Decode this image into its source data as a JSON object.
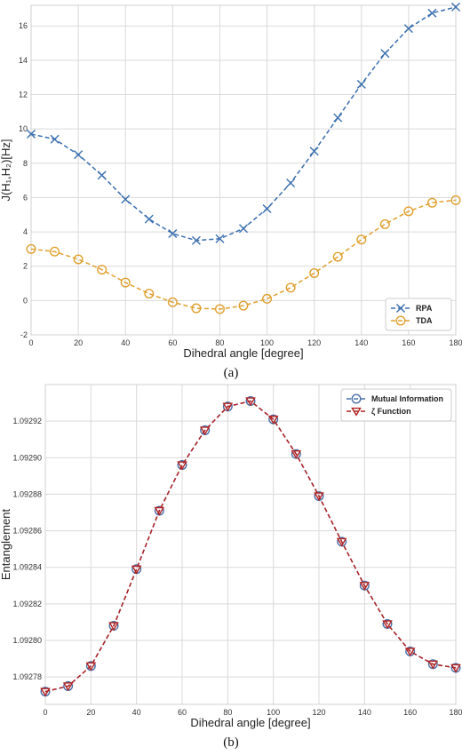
{
  "charts": [
    {
      "id": "a",
      "caption": "(a)",
      "chart_data": {
        "type": "line",
        "xlabel": "Dihedral angle [degree]",
        "ylabel": "J(H₁,H₂)[Hz]",
        "xlim": [
          0,
          180
        ],
        "ylim": [
          -2,
          17.2
        ],
        "xticks": [
          0,
          20,
          40,
          60,
          80,
          100,
          120,
          140,
          160,
          180
        ],
        "yticks": [
          -2,
          0,
          2,
          4,
          6,
          8,
          10,
          12,
          14,
          16
        ],
        "grid": true,
        "legend_position": "bottom-right",
        "x": [
          0,
          10,
          20,
          30,
          40,
          50,
          60,
          70,
          80,
          90,
          100,
          110,
          120,
          130,
          140,
          150,
          160,
          170,
          180
        ],
        "series": [
          {
            "name": "RPA",
            "color": "#3a6fb0",
            "marker": "x",
            "values": [
              9.7,
              9.4,
              8.5,
              7.3,
              5.9,
              4.75,
              3.9,
              3.5,
              3.6,
              4.2,
              5.35,
              6.85,
              8.7,
              10.65,
              12.6,
              14.4,
              15.85,
              16.75,
              17.1
            ]
          },
          {
            "name": "TDA",
            "color": "#e0a030",
            "marker": "o",
            "values": [
              3.0,
              2.85,
              2.4,
              1.8,
              1.05,
              0.4,
              -0.1,
              -0.45,
              -0.5,
              -0.3,
              0.1,
              0.75,
              1.6,
              2.55,
              3.55,
              4.45,
              5.2,
              5.7,
              5.85
            ]
          }
        ]
      }
    },
    {
      "id": "b",
      "caption": "(b)",
      "chart_data": {
        "type": "line",
        "xlabel": "Dihedral angle [degree]",
        "ylabel": "Entanglement",
        "xlim": [
          0,
          180
        ],
        "ylim": [
          1.092765,
          1.09294
        ],
        "xticks": [
          0,
          20,
          40,
          60,
          80,
          100,
          120,
          140,
          160,
          180
        ],
        "yticks": [
          1.09278,
          1.0928,
          1.09282,
          1.09284,
          1.09286,
          1.09288,
          1.0929,
          1.09292
        ],
        "ytick_labels": [
          "1.09278",
          "1.09280",
          "1.09282",
          "1.09284",
          "1.09286",
          "1.09288",
          "1.09290",
          "1.09292"
        ],
        "grid": true,
        "legend_position": "top-right",
        "x": [
          0,
          10,
          20,
          30,
          40,
          50,
          60,
          70,
          80,
          90,
          100,
          110,
          120,
          130,
          140,
          150,
          160,
          170,
          180
        ],
        "series": [
          {
            "name": "Mutual Information",
            "color": "#4a6fa8",
            "marker": "o",
            "values": [
              1.092772,
              1.092775,
              1.092786,
              1.092808,
              1.092839,
              1.092871,
              1.092896,
              1.092915,
              1.092928,
              1.092931,
              1.092921,
              1.092902,
              1.092879,
              1.092854,
              1.09283,
              1.092809,
              1.092794,
              1.092787,
              1.092785
            ]
          },
          {
            "name": "ζ Function",
            "color": "#b22222",
            "marker": "v",
            "values": [
              1.092772,
              1.092775,
              1.092786,
              1.092808,
              1.092839,
              1.092871,
              1.092896,
              1.092915,
              1.092928,
              1.092931,
              1.092921,
              1.092902,
              1.092879,
              1.092854,
              1.09283,
              1.092809,
              1.092794,
              1.092787,
              1.092785
            ]
          }
        ]
      }
    }
  ]
}
